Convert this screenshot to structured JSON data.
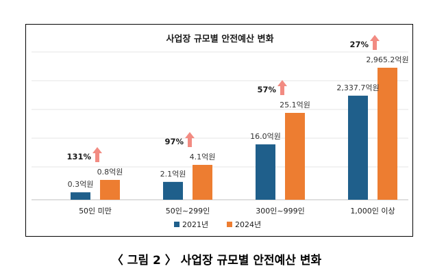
{
  "caption": "〈 그림 2 〉 사업장 규모별 안전예산 변화",
  "colors": {
    "series_2021": "#1f5f8b",
    "series_2024": "#ed7d31",
    "arrow": "#f28b82",
    "grid": "#e6e6e6"
  },
  "chart_data": {
    "type": "bar",
    "title": "사업장 규모별 안전예산 변화",
    "categories": [
      "50인 미만",
      "50인~299인",
      "300인~999인",
      "1,000인 이상"
    ],
    "series": [
      {
        "name": "2021년",
        "values": [
          0.3,
          2.1,
          16.0,
          2337.7
        ],
        "labels": [
          "0.3억원",
          "2.1억원",
          "16.0억원",
          "2,337.7억원"
        ]
      },
      {
        "name": "2024년",
        "values": [
          0.8,
          4.1,
          25.1,
          2965.2
        ],
        "labels": [
          "0.8억원",
          "4.1억원",
          "25.1억원",
          "2,965.2억원"
        ]
      }
    ],
    "growth_labels": [
      "131%",
      "97%",
      "57%",
      "27%"
    ],
    "legend": "bottom",
    "grid": true
  }
}
